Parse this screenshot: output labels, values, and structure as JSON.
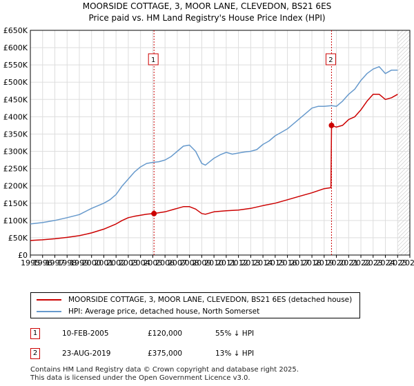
{
  "title_line1": "MOORSIDE COTTAGE, 3, MOOR LANE, CLEVEDON, BS21 6ES",
  "title_line2": "Price paid vs. HM Land Registry's House Price Index (HPI)",
  "colors": {
    "property": "#cc0000",
    "hpi": "#6699cc",
    "marker_line": "#cc0000",
    "hatch": "#bbbbbb"
  },
  "chart_data": {
    "type": "line",
    "xlim": [
      1995,
      2026
    ],
    "ylim": [
      0,
      650000
    ],
    "x_ticks": [
      "1995",
      "1996",
      "1997",
      "1998",
      "1999",
      "2000",
      "2001",
      "2002",
      "2003",
      "2004",
      "2005",
      "2006",
      "2007",
      "2008",
      "2009",
      "2010",
      "2011",
      "2012",
      "2013",
      "2014",
      "2015",
      "2016",
      "2017",
      "2018",
      "2019",
      "2020",
      "2021",
      "2022",
      "2023",
      "2024",
      "2025",
      "2026"
    ],
    "y_ticks": [
      {
        "value": 0,
        "label": "£0"
      },
      {
        "value": 50000,
        "label": "£50K"
      },
      {
        "value": 100000,
        "label": "£100K"
      },
      {
        "value": 150000,
        "label": "£150K"
      },
      {
        "value": 200000,
        "label": "£200K"
      },
      {
        "value": 250000,
        "label": "£250K"
      },
      {
        "value": 300000,
        "label": "£300K"
      },
      {
        "value": 350000,
        "label": "£350K"
      },
      {
        "value": 400000,
        "label": "£400K"
      },
      {
        "value": 450000,
        "label": "£450K"
      },
      {
        "value": 500000,
        "label": "£500K"
      },
      {
        "value": 550000,
        "label": "£550K"
      },
      {
        "value": 600000,
        "label": "£600K"
      },
      {
        "value": 650000,
        "label": "£650K"
      }
    ],
    "grid": true,
    "forecast_hatch_from": 2025.0,
    "series": [
      {
        "name": "MOORSIDE COTTAGE, 3, MOOR LANE, CLEVEDON, BS21 6ES (detached house)",
        "color": "#cc0000",
        "x": [
          1995.0,
          1996.0,
          1997.0,
          1998.0,
          1999.0,
          2000.0,
          2001.0,
          2002.0,
          2002.5,
          2003.0,
          2003.5,
          2004.0,
          2004.5,
          2005.1,
          2006.0,
          2007.0,
          2007.5,
          2008.0,
          2008.5,
          2009.0,
          2009.3,
          2010.0,
          2011.0,
          2012.0,
          2013.0,
          2014.0,
          2015.0,
          2016.0,
          2017.0,
          2018.0,
          2018.5,
          2019.0,
          2019.55,
          2019.6,
          2020.0,
          2020.5,
          2021.0,
          2021.5,
          2022.0,
          2022.5,
          2023.0,
          2023.5,
          2024.0,
          2024.5,
          2025.0
        ],
        "y": [
          42000,
          44000,
          47000,
          51000,
          56000,
          64000,
          75000,
          90000,
          100000,
          108000,
          112000,
          115000,
          118000,
          120000,
          125000,
          135000,
          140000,
          140000,
          133000,
          120000,
          118000,
          125000,
          128000,
          130000,
          135000,
          143000,
          150000,
          160000,
          170000,
          180000,
          186000,
          192000,
          195000,
          375000,
          370000,
          375000,
          392000,
          400000,
          420000,
          445000,
          465000,
          465000,
          450000,
          455000,
          465000
        ]
      },
      {
        "name": "HPI: Average price, detached house, North Somerset",
        "color": "#6699cc",
        "x": [
          1995.0,
          1996.0,
          1997.0,
          1998.0,
          1999.0,
          2000.0,
          2001.0,
          2001.5,
          2002.0,
          2002.5,
          2003.0,
          2003.5,
          2004.0,
          2004.5,
          2005.0,
          2005.5,
          2006.0,
          2006.5,
          2007.0,
          2007.5,
          2008.0,
          2008.5,
          2009.0,
          2009.3,
          2010.0,
          2010.5,
          2011.0,
          2011.5,
          2012.0,
          2012.5,
          2013.0,
          2013.5,
          2014.0,
          2014.5,
          2015.0,
          2015.5,
          2016.0,
          2016.5,
          2017.0,
          2017.5,
          2018.0,
          2018.5,
          2019.0,
          2019.6,
          2020.0,
          2020.5,
          2021.0,
          2021.5,
          2022.0,
          2022.5,
          2023.0,
          2023.5,
          2024.0,
          2024.5,
          2025.0
        ],
        "y": [
          90000,
          94000,
          100000,
          108000,
          117000,
          135000,
          150000,
          160000,
          175000,
          200000,
          220000,
          240000,
          255000,
          265000,
          268000,
          270000,
          275000,
          285000,
          300000,
          315000,
          318000,
          300000,
          265000,
          260000,
          280000,
          290000,
          297000,
          292000,
          295000,
          298000,
          300000,
          305000,
          320000,
          330000,
          345000,
          355000,
          365000,
          380000,
          395000,
          410000,
          425000,
          430000,
          430000,
          432000,
          430000,
          445000,
          465000,
          480000,
          505000,
          525000,
          538000,
          545000,
          525000,
          535000,
          535000
        ]
      }
    ],
    "annotations": [
      {
        "label": "1",
        "x": 2005.1,
        "y": 120000
      },
      {
        "label": "2",
        "x": 2019.6,
        "y": 375000
      }
    ]
  },
  "legend": {
    "property_label": "MOORSIDE COTTAGE, 3, MOOR LANE, CLEVEDON, BS21 6ES (detached house)",
    "hpi_label": "HPI: Average price, detached house, North Somerset"
  },
  "transactions": [
    {
      "num": "1",
      "date": "10-FEB-2005",
      "price": "£120,000",
      "hpi": "55% ↓ HPI"
    },
    {
      "num": "2",
      "date": "23-AUG-2019",
      "price": "£375,000",
      "hpi": "13% ↓ HPI"
    }
  ],
  "footer": {
    "line1": "Contains HM Land Registry data © Crown copyright and database right 2025.",
    "line2": "This data is licensed under the Open Government Licence v3.0."
  }
}
